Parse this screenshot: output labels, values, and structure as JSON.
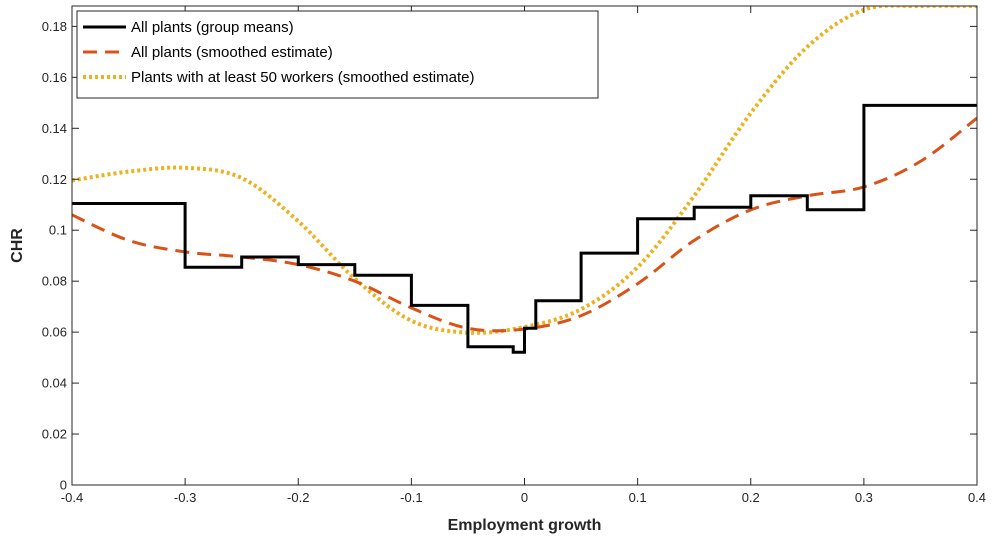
{
  "chart_data": {
    "type": "line",
    "xlabel": "Employment growth",
    "ylabel": "CHR",
    "xlim": [
      -0.4,
      0.4
    ],
    "ylim": [
      0,
      0.188
    ],
    "xticks": [
      "-0.4",
      "-0.3",
      "-0.2",
      "-0.1",
      "0",
      "0.1",
      "0.2",
      "0.3",
      "0.4"
    ],
    "yticks": [
      "0",
      "0.02",
      "0.04",
      "0.06",
      "0.08",
      "0.1",
      "0.12",
      "0.14",
      "0.16",
      "0.18"
    ],
    "grid": false,
    "legend_position": "top-left",
    "series": [
      {
        "name": "All plants (group means)",
        "style": "solid-step",
        "color": "#000000",
        "x": [
          -0.4,
          -0.3,
          -0.3,
          -0.25,
          -0.25,
          -0.2,
          -0.2,
          -0.15,
          -0.15,
          -0.1,
          -0.1,
          -0.05,
          -0.05,
          -0.01,
          -0.01,
          0,
          0,
          0.01,
          0.01,
          0.05,
          0.05,
          0.1,
          0.1,
          0.15,
          0.15,
          0.2,
          0.2,
          0.25,
          0.25,
          0.3,
          0.3,
          0.4
        ],
        "y": [
          0.1105,
          0.1105,
          0.0855,
          0.0855,
          0.0895,
          0.0895,
          0.0865,
          0.0865,
          0.0823,
          0.0823,
          0.0705,
          0.0705,
          0.0543,
          0.0543,
          0.0521,
          0.0521,
          0.0615,
          0.0615,
          0.0723,
          0.0723,
          0.091,
          0.091,
          0.1045,
          0.1045,
          0.109,
          0.109,
          0.1135,
          0.1135,
          0.108,
          0.108,
          0.149,
          0.149
        ]
      },
      {
        "name": "All plants (smoothed estimate)",
        "style": "dashed",
        "color": "#D95319",
        "x": [
          -0.4,
          -0.35,
          -0.3,
          -0.25,
          -0.2,
          -0.15,
          -0.1,
          -0.05,
          0,
          0.05,
          0.1,
          0.15,
          0.2,
          0.25,
          0.3,
          0.35,
          0.4
        ],
        "y": [
          0.106,
          0.096,
          0.0915,
          0.0895,
          0.0865,
          0.08,
          0.0695,
          0.0615,
          0.0612,
          0.0665,
          0.079,
          0.096,
          0.108,
          0.1135,
          0.117,
          0.127,
          0.144
        ]
      },
      {
        "name": "Plants with at least 50 workers (smoothed estimate)",
        "style": "dotted",
        "color": "#EDB120",
        "x": [
          -0.4,
          -0.35,
          -0.3,
          -0.25,
          -0.2,
          -0.15,
          -0.1,
          -0.05,
          0,
          0.05,
          0.1,
          0.15,
          0.2,
          0.25,
          0.3,
          0.35,
          0.4
        ],
        "y": [
          0.1195,
          0.123,
          0.1245,
          0.1205,
          0.1035,
          0.081,
          0.0645,
          0.0598,
          0.062,
          0.069,
          0.0855,
          0.1135,
          0.146,
          0.172,
          0.1865,
          0.188,
          0.188
        ]
      }
    ]
  }
}
